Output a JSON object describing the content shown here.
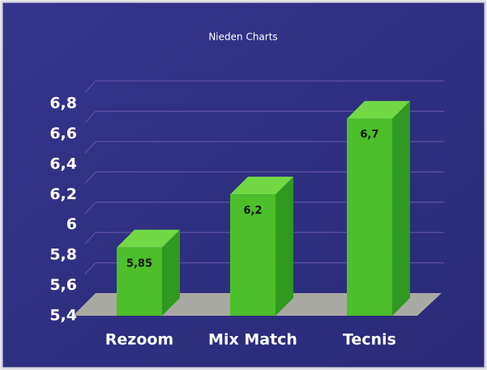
{
  "chart_data": {
    "type": "bar3d",
    "title": "Nieden Charts",
    "categories": [
      "Rezoom",
      "Mix Match",
      "Tecnis"
    ],
    "values": [
      5.85,
      6.2,
      6.7
    ],
    "value_labels": [
      "5,85",
      "6,2",
      "6,7"
    ],
    "color": "#4cbf2a",
    "ylim": [
      5.4,
      6.8
    ],
    "yticks": [
      {
        "value": 5.4,
        "label": "5,4"
      },
      {
        "value": 5.6,
        "label": "5,6"
      },
      {
        "value": 5.8,
        "label": "5,8"
      },
      6,
      {
        "value": 6.2,
        "label": "6,2"
      },
      {
        "value": 6.4,
        "label": "6,4"
      },
      {
        "value": 6.6,
        "label": "6,6"
      },
      {
        "value": 6.8,
        "label": "6,8"
      }
    ],
    "grid": true
  }
}
